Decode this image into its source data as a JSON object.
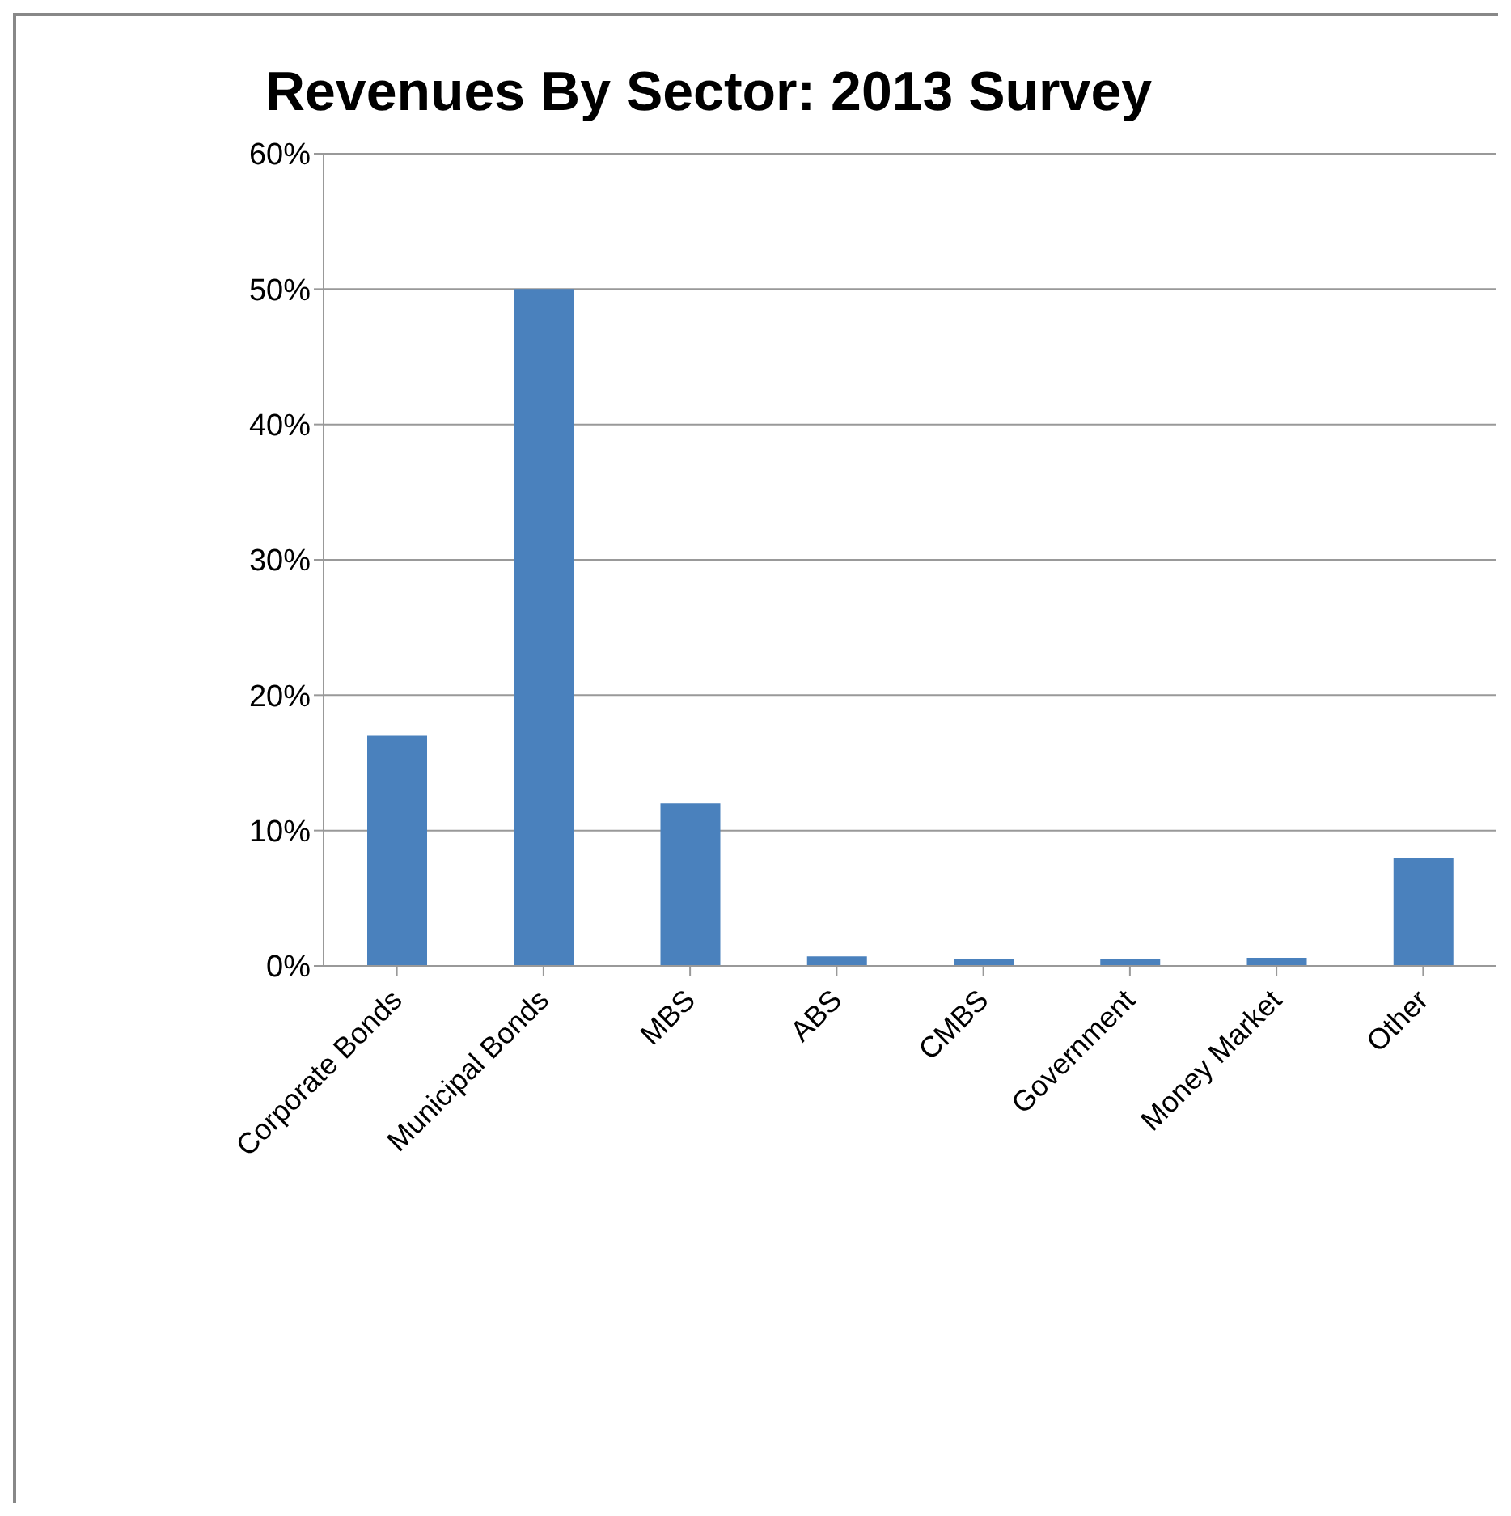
{
  "chart_data": {
    "type": "bar",
    "title": "Revenues By Sector: 2013 Survey",
    "categories": [
      "Corporate Bonds",
      "Municipal Bonds",
      "MBS",
      "ABS",
      "CMBS",
      "Government",
      "Money Market",
      "Other"
    ],
    "values": [
      17,
      50,
      12,
      0.7,
      0.5,
      0.5,
      0.6,
      8
    ],
    "color": "#4a81bd",
    "ylim": [
      0,
      60
    ],
    "yticks": [
      {
        "value": 0,
        "label": "0%"
      },
      {
        "value": 10,
        "label": "10%"
      },
      {
        "value": 20,
        "label": "20%"
      },
      {
        "value": 30,
        "label": "30%"
      },
      {
        "value": 40,
        "label": "40%"
      },
      {
        "value": 50,
        "label": "50%"
      },
      {
        "value": 60,
        "label": "60%"
      }
    ],
    "grid": "y"
  }
}
